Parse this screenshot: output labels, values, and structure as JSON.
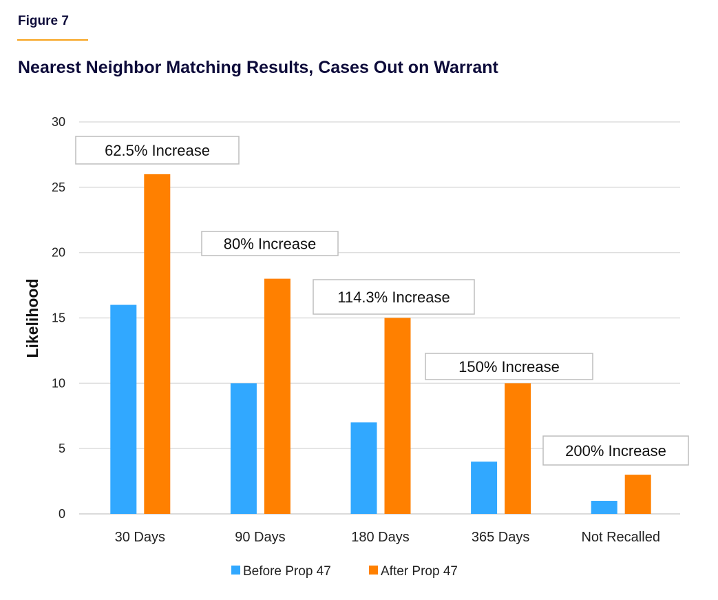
{
  "figure_label": "Figure 7",
  "chart_data": {
    "type": "bar",
    "title": "Nearest Neighbor Matching Results, Cases Out on Warrant",
    "xlabel": "",
    "ylabel": "Likelihood",
    "ylim": [
      0,
      30
    ],
    "yticks": [
      0,
      5,
      10,
      15,
      20,
      25,
      30
    ],
    "grid": true,
    "legend_position": "bottom",
    "categories": [
      "30 Days",
      "90 Days",
      "180 Days",
      "365 Days",
      "Not Recalled"
    ],
    "series": [
      {
        "name": "Before Prop 47",
        "color": "#31a8ff",
        "values": [
          16,
          10,
          7,
          4,
          1
        ]
      },
      {
        "name": "After Prop 47",
        "color": "#ff8000",
        "values": [
          26,
          18,
          15,
          10,
          3
        ]
      }
    ],
    "annotations": [
      "62.5% Increase",
      "80% Increase",
      "114.3% Increase",
      "150% Increase",
      "200% Increase"
    ]
  }
}
